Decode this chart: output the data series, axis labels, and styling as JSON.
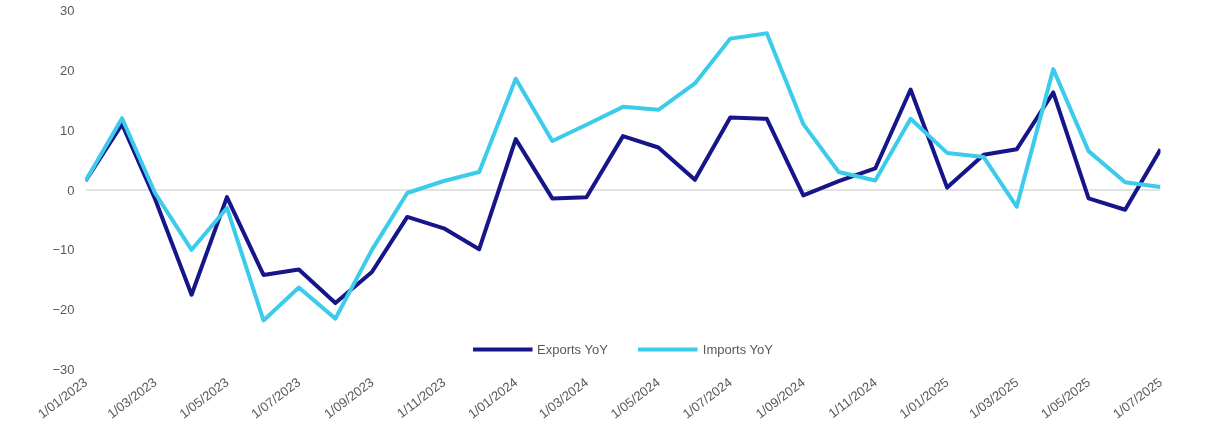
{
  "chart_data": {
    "type": "line",
    "x": [
      "2023-01",
      "2023-02",
      "2023-03",
      "2023-04",
      "2023-05",
      "2023-06",
      "2023-07",
      "2023-08",
      "2023-09",
      "2023-10",
      "2023-11",
      "2023-12",
      "2024-01",
      "2024-02",
      "2024-03",
      "2024-04",
      "2024-05",
      "2024-06",
      "2024-07",
      "2024-08",
      "2024-09",
      "2024-10",
      "2024-11",
      "2024-12",
      "2025-01",
      "2025-02",
      "2025-03",
      "2025-04",
      "2025-05",
      "2025-06",
      "2025-07"
    ],
    "xlim": [
      "2023-01",
      "2025-07"
    ],
    "xticks": [
      {
        "value": "2023-01",
        "label": "1/01/2023"
      },
      {
        "value": "2023-03",
        "label": "1/03/2023"
      },
      {
        "value": "2023-05",
        "label": "1/05/2023"
      },
      {
        "value": "2023-07",
        "label": "1/07/2023"
      },
      {
        "value": "2023-09",
        "label": "1/09/2023"
      },
      {
        "value": "2023-11",
        "label": "1/11/2023"
      },
      {
        "value": "2024-01",
        "label": "1/01/2024"
      },
      {
        "value": "2024-03",
        "label": "1/03/2024"
      },
      {
        "value": "2024-05",
        "label": "1/05/2024"
      },
      {
        "value": "2024-07",
        "label": "1/07/2024"
      },
      {
        "value": "2024-09",
        "label": "1/09/2024"
      },
      {
        "value": "2024-11",
        "label": "1/11/2024"
      },
      {
        "value": "2025-01",
        "label": "1/01/2025"
      },
      {
        "value": "2025-03",
        "label": "1/03/2025"
      },
      {
        "value": "2025-05",
        "label": "1/05/2025"
      },
      {
        "value": "2025-07",
        "label": "1/07/2025"
      }
    ],
    "ylim": [
      -30,
      30
    ],
    "yticks": [
      -30,
      -20,
      -10,
      0,
      10,
      20,
      30
    ],
    "legend": "bottom",
    "series": [
      {
        "name": "Exports YoY",
        "color": "#16168a",
        "values": [
          1.5,
          11,
          -1.5,
          -17.5,
          -1.2,
          -14.2,
          -13.3,
          -18.9,
          -13.7,
          -4.5,
          -6.4,
          -9.9,
          8.5,
          -1.4,
          -1.2,
          9,
          7.1,
          1.7,
          12.1,
          11.9,
          -0.9,
          1.5,
          3.6,
          16.8,
          0.4,
          5.9,
          6.8,
          16.3,
          -1.4,
          -3.3,
          6.8
        ]
      },
      {
        "name": "Imports YoY",
        "color": "#3ccbea",
        "values": [
          1.5,
          12,
          -0.5,
          -10,
          -3,
          -21.8,
          -16.3,
          -21.5,
          -10,
          -0.5,
          1.5,
          3,
          18.6,
          8.2,
          10.9,
          13.9,
          13.4,
          17.8,
          25.3,
          26.2,
          11,
          3,
          1.6,
          11.9,
          6.2,
          5.5,
          -2.8,
          20.2,
          6.5,
          1.3,
          0.5
        ]
      }
    ]
  }
}
